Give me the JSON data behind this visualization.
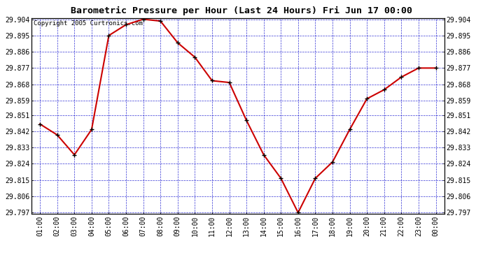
{
  "title": "Barometric Pressure per Hour (Last 24 Hours) Fri Jun 17 00:00",
  "copyright_text": "Copyright 2005 Curtronics.com",
  "x_labels": [
    "01:00",
    "02:00",
    "03:00",
    "04:00",
    "05:00",
    "06:00",
    "07:00",
    "08:00",
    "09:00",
    "10:00",
    "11:00",
    "12:00",
    "13:00",
    "14:00",
    "15:00",
    "16:00",
    "17:00",
    "18:00",
    "19:00",
    "20:00",
    "21:00",
    "22:00",
    "23:00",
    "00:00"
  ],
  "y_values": [
    29.846,
    29.84,
    29.829,
    29.843,
    29.895,
    29.901,
    29.904,
    29.903,
    29.891,
    29.883,
    29.87,
    29.869,
    29.848,
    29.829,
    29.816,
    29.797,
    29.816,
    29.825,
    29.843,
    29.86,
    29.865,
    29.872,
    29.877,
    29.877
  ],
  "y_min": 29.797,
  "y_max": 29.904,
  "y_ticks": [
    29.904,
    29.895,
    29.886,
    29.877,
    29.868,
    29.859,
    29.851,
    29.842,
    29.833,
    29.824,
    29.815,
    29.806,
    29.797
  ],
  "line_color": "#cc0000",
  "marker_color": "#000000",
  "bg_color": "#ffffff",
  "grid_color": "#0000cc",
  "title_color": "#000000",
  "copyright_color": "#000000"
}
